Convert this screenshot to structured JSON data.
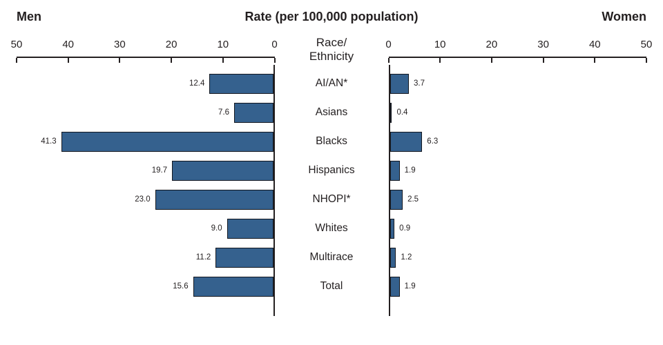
{
  "header": {
    "left": "Men",
    "title": "Rate (per 100,000 population)",
    "right": "Women"
  },
  "center": {
    "line1": "Race/",
    "line2": "Ethnicity"
  },
  "chart_data": {
    "type": "bar",
    "orientation": "horizontal-bilateral",
    "title": "Rate (per 100,000 population)",
    "left_series_label": "Men",
    "right_series_label": "Women",
    "categories": [
      "AI/AN*",
      "Asians",
      "Blacks",
      "Hispanics",
      "NHOPI*",
      "Whites",
      "Multirace",
      "Total"
    ],
    "series": [
      {
        "name": "Men",
        "values": [
          12.4,
          7.6,
          41.3,
          19.7,
          23.0,
          9.0,
          11.2,
          15.6
        ]
      },
      {
        "name": "Women",
        "values": [
          3.7,
          0.4,
          6.3,
          1.9,
          2.5,
          0.9,
          1.2,
          1.9
        ]
      }
    ],
    "value_labels": {
      "men": [
        "12.4",
        "7.6",
        "41.3",
        "19.7",
        "23.0",
        "9.0",
        "11.2",
        "15.6"
      ],
      "women": [
        "3.7",
        "0.4",
        "6.3",
        "1.9",
        "2.5",
        "0.9",
        "1.2",
        "1.9"
      ]
    },
    "axis": {
      "min": 0,
      "max": 50,
      "ticks": [
        0,
        10,
        20,
        30,
        40,
        50
      ]
    },
    "grid": false,
    "legend": "none",
    "bar_color": "#35618e",
    "bar_border_color": "#12161e",
    "axis_color": "#231f20"
  }
}
